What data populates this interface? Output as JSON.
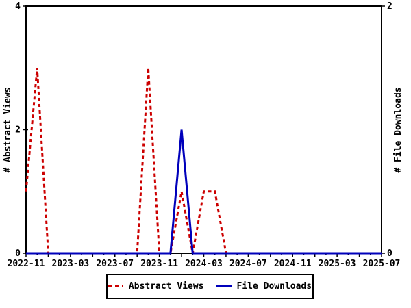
{
  "chart_data": {
    "type": "line",
    "title": "",
    "x": [
      "2022-11",
      "2022-12",
      "2023-01",
      "2023-02",
      "2023-03",
      "2023-04",
      "2023-05",
      "2023-06",
      "2023-07",
      "2023-08",
      "2023-09",
      "2023-10",
      "2023-11",
      "2023-12",
      "2024-01",
      "2024-02",
      "2024-03",
      "2024-04",
      "2024-05",
      "2024-06",
      "2024-07",
      "2024-08",
      "2024-09",
      "2024-10",
      "2024-11",
      "2024-12",
      "2025-01",
      "2025-02",
      "2025-03",
      "2025-04",
      "2025-05",
      "2025-06",
      "2025-07"
    ],
    "x_label_every": 4,
    "x_tick_labels": [
      "2022-11",
      "2023-03",
      "2023-07",
      "2023-11",
      "2024-03",
      "2024-07",
      "2024-11",
      "2025-03",
      "2025-07"
    ],
    "series": [
      {
        "name": "Abstract Views",
        "axis": "left",
        "color": "#cc0000",
        "style": "dashed",
        "values": [
          1,
          3,
          0,
          0,
          0,
          0,
          0,
          0,
          0,
          0,
          0,
          3,
          0,
          0,
          1,
          0,
          1,
          1,
          0,
          0,
          0,
          0,
          0,
          0,
          0,
          0,
          0,
          0,
          0,
          0,
          0,
          0,
          0
        ]
      },
      {
        "name": "File Downloads",
        "axis": "right",
        "color": "#0000bb",
        "style": "solid",
        "values": [
          0,
          0,
          0,
          0,
          0,
          0,
          0,
          0,
          0,
          0,
          0,
          0,
          0,
          0,
          1,
          0,
          0,
          0,
          0,
          0,
          0,
          0,
          0,
          0,
          0,
          0,
          0,
          0,
          0,
          0,
          0,
          0,
          0
        ]
      }
    ],
    "y_left": {
      "label": "# Abstract Views",
      "min": 0,
      "max": 4,
      "ticks": [
        0,
        2,
        4
      ]
    },
    "y_right": {
      "label": "# File Downloads",
      "min": 0,
      "max": 2,
      "ticks": [
        0,
        2
      ]
    },
    "grid": false,
    "legend_position": "bottom",
    "axis_color": "#000000",
    "background_color": "#ffffff"
  },
  "legend": {
    "items": [
      {
        "label": "Abstract Views"
      },
      {
        "label": "File Downloads"
      }
    ]
  }
}
